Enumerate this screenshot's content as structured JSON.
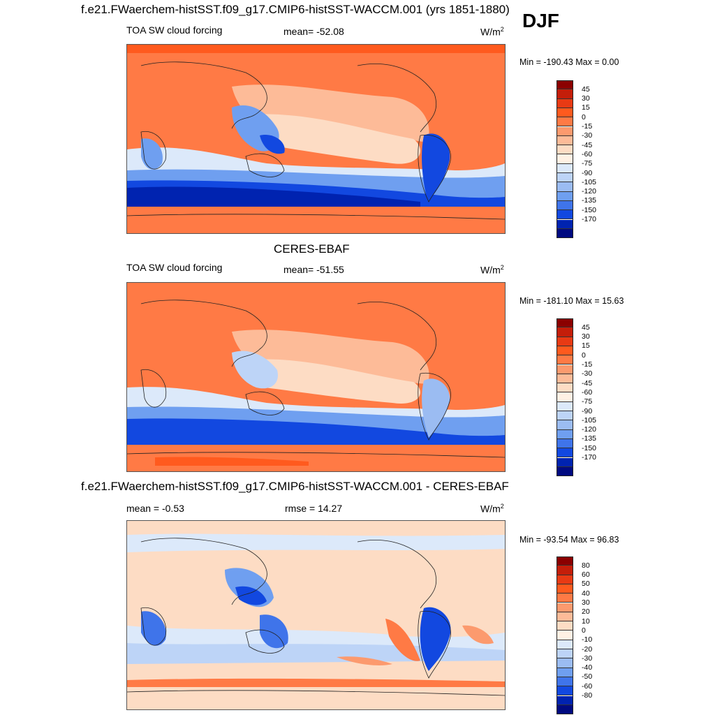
{
  "header": {
    "case_title": "f.e21.FWaerchem-histSST.f09_g17.CMIP6-histSST-WACCM.001 (yrs 1851-1880)",
    "season": "DJF"
  },
  "panel1": {
    "variable": "TOA SW cloud forcing",
    "mean_text": "mean= -52.08",
    "units": "W/m",
    "units_sup": "2",
    "minmax": "Min = -190.43 Max =   0.00"
  },
  "panel2": {
    "title": "CERES-EBAF",
    "variable": "TOA SW cloud forcing",
    "mean_text": "mean= -51.55",
    "units": "W/m",
    "units_sup": "2",
    "minmax": "Min = -181.10 Max =  15.63"
  },
  "panel3": {
    "title": "f.e21.FWaerchem-histSST.f09_g17.CMIP6-histSST-WACCM.001 - CERES-EBAF",
    "mean_text": "mean =  -0.53",
    "rmse_text": "rmse =  14.27",
    "units": "W/m",
    "units_sup": "2",
    "minmax": "Min = -93.54 Max =  96.83"
  },
  "chart_data": [
    {
      "type": "heatmap",
      "title": "TOA SW cloud forcing",
      "mean": -52.08,
      "min": -190.43,
      "max": 0.0,
      "colorbar_levels": [
        45,
        30,
        15,
        0,
        -15,
        -30,
        -45,
        -60,
        -75,
        -90,
        -105,
        -120,
        -135,
        -150,
        -170
      ],
      "colorbar_colors": [
        "#8b0000",
        "#c41e0a",
        "#e83a14",
        "#ff5a1e",
        "#ff7a45",
        "#fc9a6e",
        "#fdbb98",
        "#fddcc4",
        "#fff1e4",
        "#dce9fa",
        "#bdd4f7",
        "#9bbcf2",
        "#6f9ff0",
        "#3f74ea",
        "#1248e0",
        "#0023b0",
        "#000a80"
      ]
    },
    {
      "type": "heatmap",
      "title": "CERES-EBAF",
      "mean": -51.55,
      "min": -181.1,
      "max": 15.63,
      "colorbar_levels": [
        45,
        30,
        15,
        0,
        -15,
        -30,
        -45,
        -60,
        -75,
        -90,
        -105,
        -120,
        -135,
        -150,
        -170
      ],
      "colorbar_colors": [
        "#8b0000",
        "#c41e0a",
        "#e83a14",
        "#ff5a1e",
        "#ff7a45",
        "#fc9a6e",
        "#fdbb98",
        "#fddcc4",
        "#fff1e4",
        "#dce9fa",
        "#bdd4f7",
        "#9bbcf2",
        "#6f9ff0",
        "#3f74ea",
        "#1248e0",
        "#0023b0",
        "#000a80"
      ]
    },
    {
      "type": "heatmap",
      "title": "f.e21.FWaerchem-histSST.f09_g17.CMIP6-histSST-WACCM.001 - CERES-EBAF",
      "mean": -0.53,
      "rmse": 14.27,
      "min": -93.54,
      "max": 96.83,
      "colorbar_levels": [
        80,
        60,
        50,
        40,
        30,
        20,
        10,
        0,
        -10,
        -20,
        -30,
        -40,
        -50,
        -60,
        -80
      ],
      "colorbar_colors": [
        "#8b0000",
        "#c41e0a",
        "#e83a14",
        "#ff5a1e",
        "#ff7a45",
        "#fc9a6e",
        "#fdbb98",
        "#fddcc4",
        "#fff1e4",
        "#dce9fa",
        "#bdd4f7",
        "#9bbcf2",
        "#6f9ff0",
        "#3f74ea",
        "#1248e0",
        "#0023b0",
        "#000a80"
      ]
    }
  ]
}
